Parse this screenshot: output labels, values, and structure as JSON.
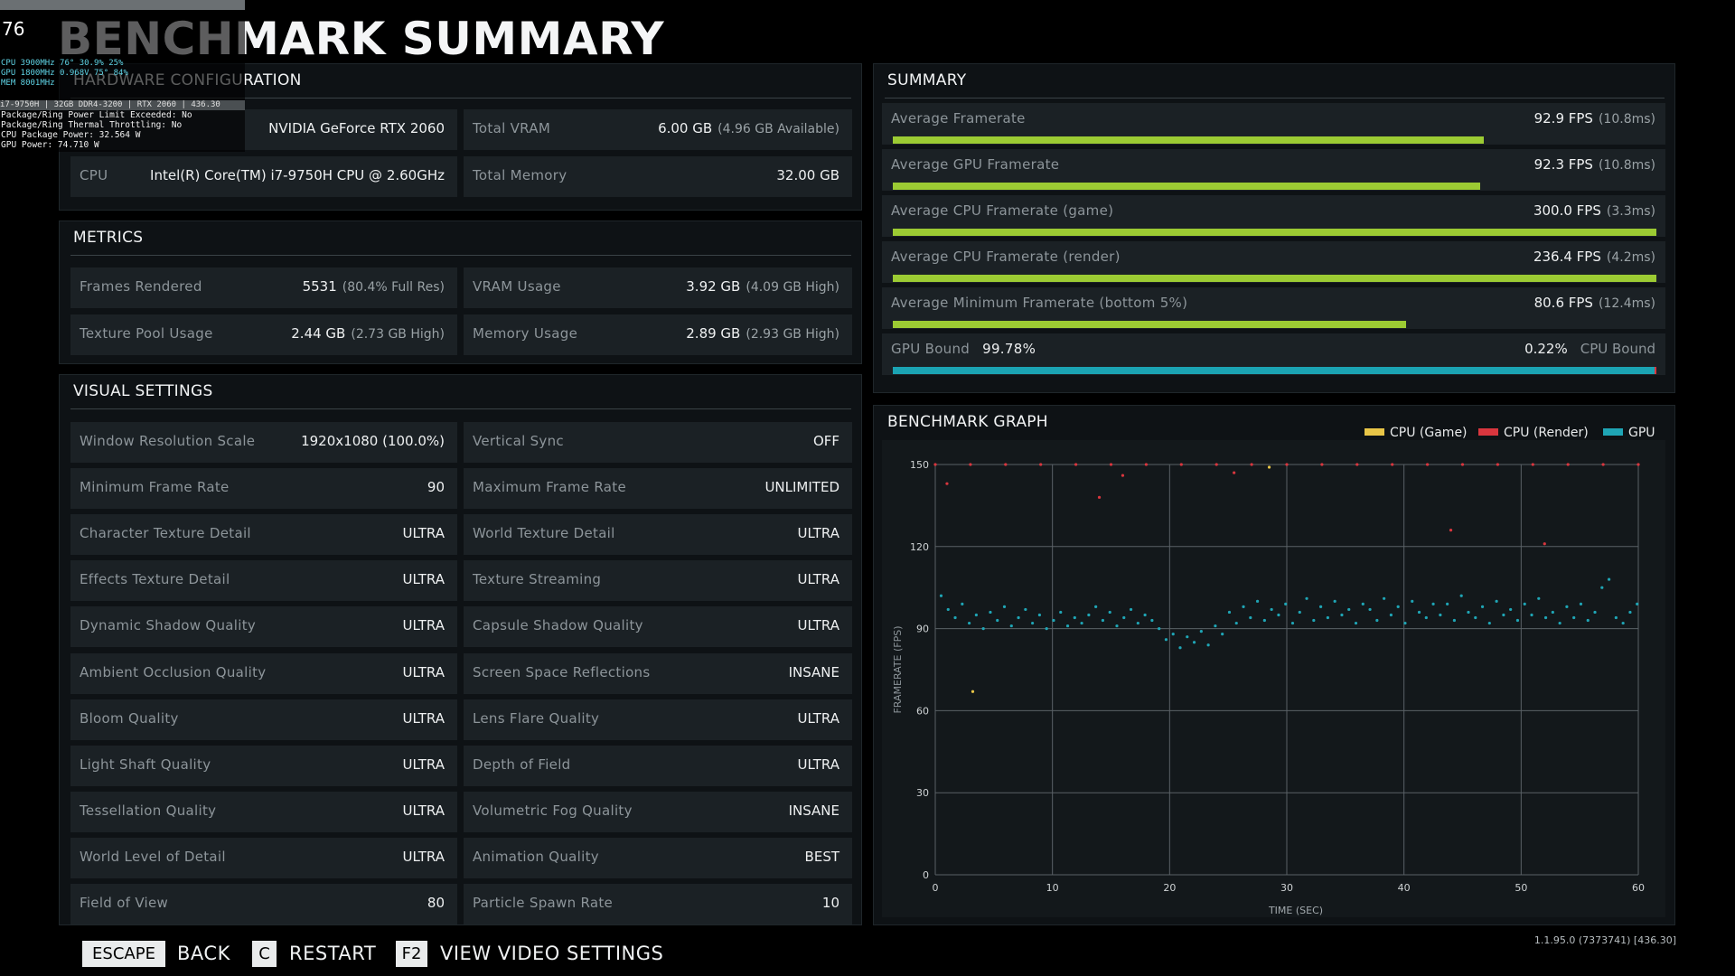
{
  "osd": {
    "fps": "76",
    "lines": [
      "CPU 3900MHz 76° 30.9% 25%",
      "GPU 1800MHz 0.968V 75° 84%",
      "MEM 8001MHz"
    ],
    "system": "i7-9750H | 32GB DDR4-3200 | RTX 2060 | 436.30",
    "status": [
      "Package/Ring Power Limit Exceeded: No",
      "Package/Ring Thermal Throttling: No",
      "CPU Package Power: 32.564 W",
      "GPU Power: 74.710 W"
    ]
  },
  "title": "BENCHMARK SUMMARY",
  "hardware": {
    "title": "HARDWARE CONFIGURATION",
    "items": [
      {
        "value": "NVIDIA GeForce RTX 2060"
      },
      {
        "label": "Total VRAM",
        "value": "6.00 GB",
        "note": "(4.96 GB Available)"
      },
      {
        "label": "CPU",
        "value": "Intel(R) Core(TM) i7-9750H CPU @ 2.60GHz"
      },
      {
        "label": "Total Memory",
        "value": "32.00 GB"
      }
    ]
  },
  "metrics": {
    "title": "METRICS",
    "items": [
      {
        "label": "Frames Rendered",
        "value": "5531",
        "note": "(80.4% Full Res)"
      },
      {
        "label": "VRAM Usage",
        "value": "3.92 GB",
        "note": "(4.09 GB High)"
      },
      {
        "label": "Texture Pool Usage",
        "value": "2.44 GB",
        "note": "(2.73 GB High)"
      },
      {
        "label": "Memory Usage",
        "value": "2.89 GB",
        "note": "(2.93 GB High)"
      }
    ]
  },
  "visual_settings": {
    "title": "VISUAL SETTINGS",
    "items": [
      {
        "label": "Window Resolution Scale",
        "value": "1920x1080 (100.0%)"
      },
      {
        "label": "Vertical Sync",
        "value": "OFF"
      },
      {
        "label": "Minimum Frame Rate",
        "value": 90
      },
      {
        "label": "Maximum Frame Rate",
        "value": "UNLIMITED"
      },
      {
        "label": "Character Texture Detail",
        "value": "ULTRA"
      },
      {
        "label": "World Texture Detail",
        "value": "ULTRA"
      },
      {
        "label": "Effects Texture Detail",
        "value": "ULTRA"
      },
      {
        "label": "Texture Streaming",
        "value": "ULTRA"
      },
      {
        "label": "Dynamic Shadow Quality",
        "value": "ULTRA"
      },
      {
        "label": "Capsule Shadow Quality",
        "value": "ULTRA"
      },
      {
        "label": "Ambient Occlusion Quality",
        "value": "ULTRA"
      },
      {
        "label": "Screen Space Reflections",
        "value": "INSANE"
      },
      {
        "label": "Bloom Quality",
        "value": "ULTRA"
      },
      {
        "label": "Lens Flare Quality",
        "value": "ULTRA"
      },
      {
        "label": "Light Shaft Quality",
        "value": "ULTRA"
      },
      {
        "label": "Depth of Field",
        "value": "ULTRA"
      },
      {
        "label": "Tessellation Quality",
        "value": "ULTRA"
      },
      {
        "label": "Volumetric Fog Quality",
        "value": "INSANE"
      },
      {
        "label": "World Level of Detail",
        "value": "ULTRA"
      },
      {
        "label": "Animation Quality",
        "value": "BEST"
      },
      {
        "label": "Field of View",
        "value": 80
      },
      {
        "label": "Particle Spawn Rate",
        "value": 10
      }
    ]
  },
  "summary": {
    "title": "SUMMARY",
    "rows": [
      {
        "label": "Average Framerate",
        "value": 92.9,
        "value_label": "92.9 FPS",
        "note": "(10.8ms)"
      },
      {
        "label": "Average GPU Framerate",
        "value": 92.3,
        "value_label": "92.3 FPS",
        "note": "(10.8ms)"
      },
      {
        "label": "Average CPU Framerate (game)",
        "value": 300.0,
        "value_label": "300.0 FPS",
        "note": "(3.3ms)"
      },
      {
        "label": "Average CPU Framerate (render)",
        "value": 236.4,
        "value_label": "236.4 FPS",
        "note": "(4.2ms)"
      },
      {
        "label": "Average Minimum Framerate (bottom 5%)",
        "value": 80.6,
        "value_label": "80.6 FPS",
        "note": "(12.4ms)"
      }
    ],
    "bound": {
      "gpu_label": "GPU Bound",
      "gpu": 99.78,
      "gpu_value_label": "99.78%",
      "cpu_label": "CPU Bound",
      "cpu": 0.22,
      "cpu_value_label": "0.22%",
      "gpu_color": "#1ba3b3",
      "cpu_color": "#d9363e"
    },
    "bar_color": "#9ccb33"
  },
  "chart_data": {
    "type": "scatter",
    "title": "BENCHMARK GRAPH",
    "x_label": "TIME (SEC)",
    "y_label": "FRAMERATE (FPS)",
    "xlim": [
      0,
      60
    ],
    "ylim": [
      0,
      150
    ],
    "xticks": [
      0,
      10,
      20,
      30,
      40,
      50,
      60
    ],
    "yticks": [
      0,
      30,
      60,
      90,
      120,
      150
    ],
    "grid": true,
    "legend": "top-right",
    "series": [
      {
        "name": "CPU (Game)",
        "color": "#e8c547",
        "x": [
          3.2,
          28.5
        ],
        "values": [
          67,
          149
        ]
      },
      {
        "name": "CPU (Render)",
        "color": "#d9363e",
        "x": [
          0,
          3,
          6,
          9,
          12,
          15,
          18,
          21,
          24,
          27,
          30,
          33,
          36,
          39,
          42,
          45,
          48,
          51,
          54,
          57,
          60,
          1,
          16,
          25.5,
          44,
          52,
          14
        ],
        "values": [
          150,
          150,
          150,
          150,
          150,
          150,
          150,
          150,
          150,
          150,
          150,
          150,
          150,
          150,
          150,
          150,
          150,
          150,
          150,
          150,
          150,
          143,
          146,
          147,
          126,
          121,
          138
        ]
      },
      {
        "name": "GPU",
        "color": "#1fa5b5",
        "x": [
          0.5,
          1.1,
          1.7,
          2.3,
          2.9,
          3.5,
          4.1,
          4.7,
          5.3,
          5.9,
          6.5,
          7.1,
          7.7,
          8.3,
          8.9,
          9.5,
          10.1,
          10.7,
          11.3,
          11.9,
          12.5,
          13.1,
          13.7,
          14.3,
          14.9,
          15.5,
          16.1,
          16.7,
          17.3,
          17.9,
          18.5,
          19.1,
          19.7,
          20.3,
          20.9,
          21.5,
          22.1,
          22.7,
          23.3,
          23.9,
          24.5,
          25.1,
          25.7,
          26.3,
          26.9,
          27.5,
          28.1,
          28.7,
          29.3,
          29.9,
          30.5,
          31.1,
          31.7,
          32.3,
          32.9,
          33.5,
          34.1,
          34.7,
          35.3,
          35.9,
          36.5,
          37.1,
          37.7,
          38.3,
          38.9,
          39.5,
          40.1,
          40.7,
          41.3,
          41.9,
          42.5,
          43.1,
          43.7,
          44.3,
          44.9,
          45.5,
          46.1,
          46.7,
          47.3,
          47.9,
          48.5,
          49.1,
          49.7,
          50.3,
          50.9,
          51.5,
          52.1,
          52.7,
          53.3,
          53.9,
          54.5,
          55.1,
          55.7,
          56.3,
          56.9,
          57.5,
          58.1,
          58.7,
          59.3,
          59.9
        ],
        "values": [
          102,
          97,
          94,
          99,
          92,
          95,
          90,
          96,
          93,
          98,
          91,
          94,
          97,
          92,
          95,
          90,
          93,
          96,
          91,
          94,
          92,
          95,
          98,
          93,
          96,
          91,
          94,
          97,
          92,
          95,
          93,
          90,
          86,
          88,
          83,
          87,
          85,
          89,
          84,
          91,
          88,
          96,
          92,
          98,
          94,
          100,
          93,
          97,
          95,
          99,
          92,
          96,
          101,
          93,
          98,
          94,
          100,
          95,
          97,
          92,
          99,
          97,
          93,
          101,
          95,
          98,
          92,
          100,
          96,
          94,
          99,
          95,
          99,
          93,
          102,
          96,
          94,
          98,
          92,
          100,
          95,
          97,
          93,
          99,
          95,
          101,
          94,
          96,
          92,
          98,
          94,
          99,
          93,
          96,
          105,
          108,
          94,
          92,
          96,
          99
        ]
      }
    ]
  },
  "footer": {
    "keys": [
      {
        "key": "ESCAPE",
        "action": "BACK"
      },
      {
        "key": "C",
        "action": "RESTART"
      },
      {
        "key": "F2",
        "action": "VIEW VIDEO SETTINGS"
      }
    ],
    "version": "1.1.95.0 (7373741) [436.30]"
  }
}
